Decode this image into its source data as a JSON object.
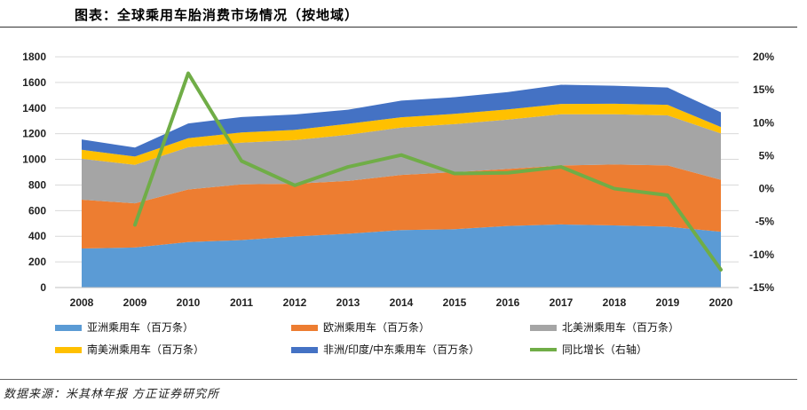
{
  "header": {
    "title": "图表：全球乘用车胎消费市场情况（按地域）"
  },
  "footer": {
    "source": "数据来源：米其林年报 方正证券研究所"
  },
  "colors": {
    "asia": "#5B9BD5",
    "europe": "#ED7D31",
    "north_america": "#A5A5A5",
    "south_america": "#FFC000",
    "africa_india_me": "#4472C4",
    "yoy": "#70AD47"
  },
  "chart_data": {
    "type": "area",
    "stacked": true,
    "categories": [
      "2008",
      "2009",
      "2010",
      "2011",
      "2012",
      "2013",
      "2014",
      "2015",
      "2016",
      "2017",
      "2018",
      "2019",
      "2020"
    ],
    "series": [
      {
        "name": "亚洲乘用车（百万条）",
        "values": [
          305,
          312,
          355,
          370,
          398,
          420,
          448,
          455,
          480,
          492,
          485,
          475,
          435
        ],
        "color_key": "asia"
      },
      {
        "name": "欧洲乘用车（百万条）",
        "values": [
          380,
          345,
          410,
          435,
          412,
          412,
          430,
          445,
          445,
          460,
          475,
          478,
          405
        ],
        "color_key": "europe"
      },
      {
        "name": "北美洲乘用车（百万条）",
        "values": [
          320,
          300,
          330,
          325,
          340,
          360,
          370,
          375,
          385,
          400,
          392,
          390,
          362
        ],
        "color_key": "north_america"
      },
      {
        "name": "南美洲乘用车（百万条）",
        "values": [
          70,
          65,
          70,
          80,
          80,
          85,
          80,
          80,
          80,
          80,
          82,
          82,
          50
        ],
        "color_key": "south_america"
      },
      {
        "name": "非洲/印度/中东乘用车（百万条）",
        "values": [
          80,
          70,
          115,
          120,
          120,
          110,
          130,
          130,
          135,
          150,
          140,
          135,
          115
        ],
        "color_key": "africa_india_me"
      }
    ],
    "line_series": {
      "name": "同比增长（右轴）",
      "axis": "right",
      "values": [
        null,
        -5.5,
        17.5,
        4.2,
        0.5,
        3.3,
        5.1,
        2.3,
        2.4,
        3.3,
        0,
        -1,
        -12.3
      ],
      "color_key": "yoy"
    },
    "y_left": {
      "min": 0,
      "max": 1800,
      "ticks": [
        "0",
        "200",
        "400",
        "600",
        "800",
        "1000",
        "1200",
        "1400",
        "1600",
        "1800"
      ]
    },
    "y_right": {
      "min": -15,
      "max": 20,
      "ticks": [
        "-15%",
        "-10%",
        "-5%",
        "0%",
        "5%",
        "10%",
        "15%",
        "20%"
      ]
    },
    "grid": true,
    "legend_position": "bottom"
  }
}
